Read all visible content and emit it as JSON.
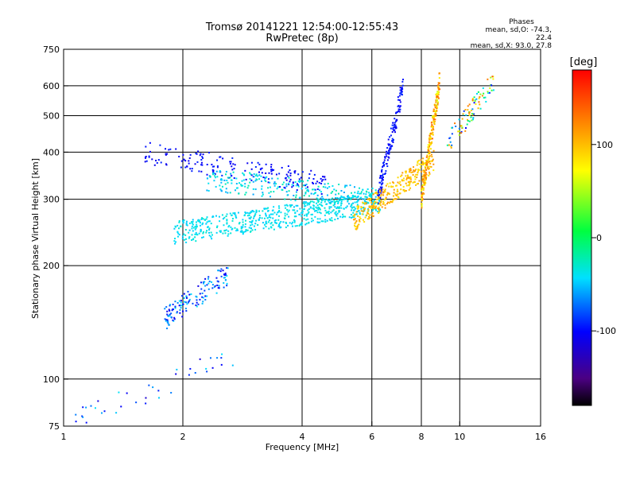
{
  "chart_data": {
    "type": "scatter",
    "title": "Tromsø 20141221 12:54:00-12:55:43",
    "subtitle": "RwPretec (8p)",
    "xlabel": "Frequency [MHz]",
    "ylabel": "Stationary phase Virtual Height [km]",
    "x_scale": "log",
    "y_scale": "log",
    "xlim": [
      1,
      16
    ],
    "ylim": [
      75,
      750
    ],
    "x_ticks": [
      1,
      2,
      4,
      6,
      8,
      10,
      16
    ],
    "x_tick_labels": [
      "1",
      "2",
      "4",
      "6",
      "8",
      "10",
      "16"
    ],
    "y_ticks": [
      75,
      100,
      200,
      300,
      400,
      500,
      600,
      750
    ],
    "y_tick_labels": [
      "75",
      "100",
      "200",
      "300",
      "400",
      "500",
      "600",
      "750"
    ],
    "x_gridlines": [
      2,
      4,
      6,
      8,
      10
    ],
    "y_gridlines": [
      100,
      200,
      300,
      400,
      500,
      600
    ],
    "grid": true,
    "stats": {
      "title": "Phases",
      "line1": "mean, sd,O: -74.3, 22.4",
      "line2": "mean, sd,X:  93.0, 27.8"
    },
    "colorbar": {
      "label": "[deg]",
      "range": [
        -180,
        180
      ],
      "ticks": [
        100,
        0,
        -100
      ],
      "tick_labels": [
        "100",
        "0",
        "-100"
      ]
    },
    "series": [
      {
        "trace": "top-arc",
        "x_range": [
          1.6,
          4.6
        ],
        "y_range": [
          400,
          330
        ],
        "phase_range": [
          -90,
          -110
        ],
        "approx_points": 180
      },
      {
        "trace": "o-trace-upper",
        "x_range": [
          2.3,
          6.2
        ],
        "y_range": [
          340,
          300
        ],
        "phase_range": [
          -60,
          -20
        ],
        "approx_points": 260
      },
      {
        "trace": "o-trace-main",
        "x_range": [
          1.9,
          6.3
        ],
        "y_range": [
          245,
          295
        ],
        "phase_range": [
          -50,
          -30
        ],
        "approx_points": 600
      },
      {
        "trace": "o-cusp",
        "x_range": [
          6.2,
          7.2
        ],
        "y_range": [
          300,
          600
        ],
        "phase_range": [
          -110,
          -90
        ],
        "approx_points": 150
      },
      {
        "trace": "x-trace",
        "x_range": [
          5.4,
          8.6
        ],
        "y_range": [
          265,
          380
        ],
        "phase_range": [
          80,
          120
        ],
        "approx_points": 300
      },
      {
        "trace": "x-cusp",
        "x_range": [
          8.0,
          8.9
        ],
        "y_range": [
          300,
          620
        ],
        "phase_range": [
          60,
          140
        ],
        "approx_points": 220
      },
      {
        "trace": "e-layer-echo",
        "x_range": [
          1.8,
          2.6
        ],
        "y_range": [
          145,
          190
        ],
        "phase_range": [
          -110,
          -40
        ],
        "approx_points": 140
      },
      {
        "trace": "high-freq-cluster",
        "x_range": [
          9.3,
          12.2
        ],
        "y_range": [
          420,
          620
        ],
        "phase_range": [
          -100,
          150
        ],
        "approx_points": 90
      },
      {
        "trace": "low-echoes",
        "x_range": [
          1.05,
          2.7
        ],
        "y_range": [
          77,
          115
        ],
        "phase_range": [
          -120,
          -40
        ],
        "approx_points": 40
      }
    ]
  }
}
